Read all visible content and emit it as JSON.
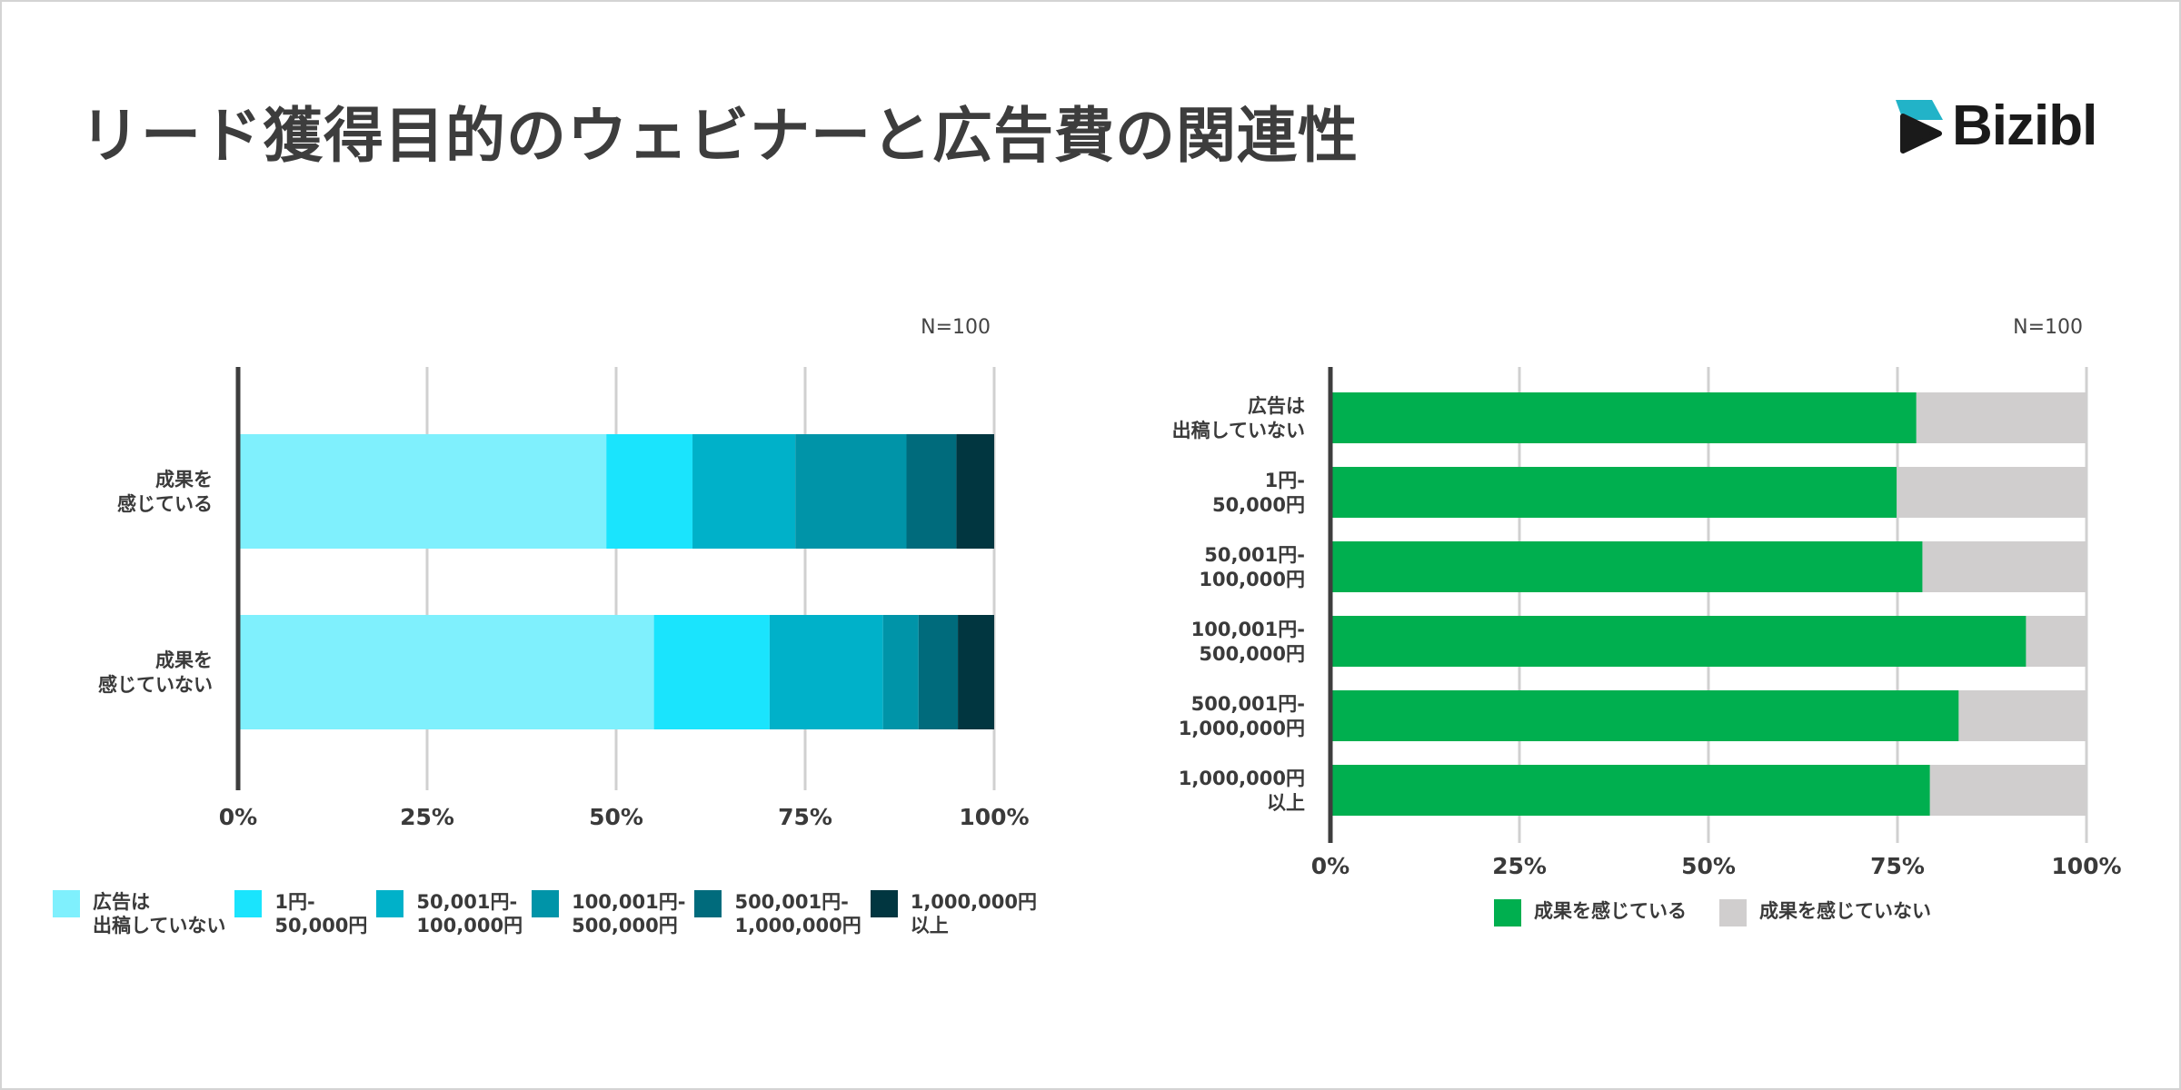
{
  "title": "リード獲得目的のウェビナーと広告費の関連性",
  "logo": {
    "text": "Bizibl",
    "icon": "play-icon",
    "icon_colors": [
      "#22b3c8",
      "#1a1a1a"
    ]
  },
  "chart_data": [
    {
      "type": "bar",
      "orientation": "horizontal",
      "stacked": true,
      "note": "N=100",
      "categories": [
        "成果を\n感じている",
        "成果を\n感じていない"
      ],
      "series": [
        {
          "name": "広告は\n出稿していない",
          "color": "#7ff0fd",
          "values": [
            48.7,
            55.0
          ]
        },
        {
          "name": "1円-\n50,000円",
          "color": "#1ae4fd",
          "values": [
            11.4,
            15.3
          ]
        },
        {
          "name": "50,001円-\n100,000円",
          "color": "#00b1c9",
          "values": [
            13.6,
            15.0
          ]
        },
        {
          "name": "100,001円-\n500,000円",
          "color": "#0094a8",
          "values": [
            14.7,
            4.7
          ]
        },
        {
          "name": "500,001円-\n1,000,000円",
          "color": "#006b7c",
          "values": [
            6.6,
            5.2
          ]
        },
        {
          "name": "1,000,000円\n以上",
          "color": "#013640",
          "values": [
            5.0,
            4.8
          ]
        }
      ],
      "xlim": [
        0,
        100
      ],
      "xticks": [
        "0%",
        "25%",
        "50%",
        "75%",
        "100%"
      ],
      "grid": true,
      "legend": "bottom"
    },
    {
      "type": "bar",
      "orientation": "horizontal",
      "stacked": true,
      "note": "N=100",
      "categories": [
        "広告は\n出稿していない",
        "1円-\n50,000円",
        "50,001円-\n100,000円",
        "100,001円-\n500,000円",
        "500,001円-\n1,000,000円",
        "1,000,000円\n以上"
      ],
      "series": [
        {
          "name": "成果を感じている",
          "color": "#00af4f",
          "values": [
            77.5,
            74.9,
            78.3,
            92.0,
            83.1,
            79.3
          ]
        },
        {
          "name": "成果を感じていない",
          "color": "#d0cece",
          "values": [
            22.5,
            25.1,
            21.7,
            8.0,
            16.9,
            20.7
          ]
        }
      ],
      "xlim": [
        0,
        100
      ],
      "xticks": [
        "0%",
        "25%",
        "50%",
        "75%",
        "100%"
      ],
      "grid": true,
      "legend": "bottom"
    }
  ]
}
